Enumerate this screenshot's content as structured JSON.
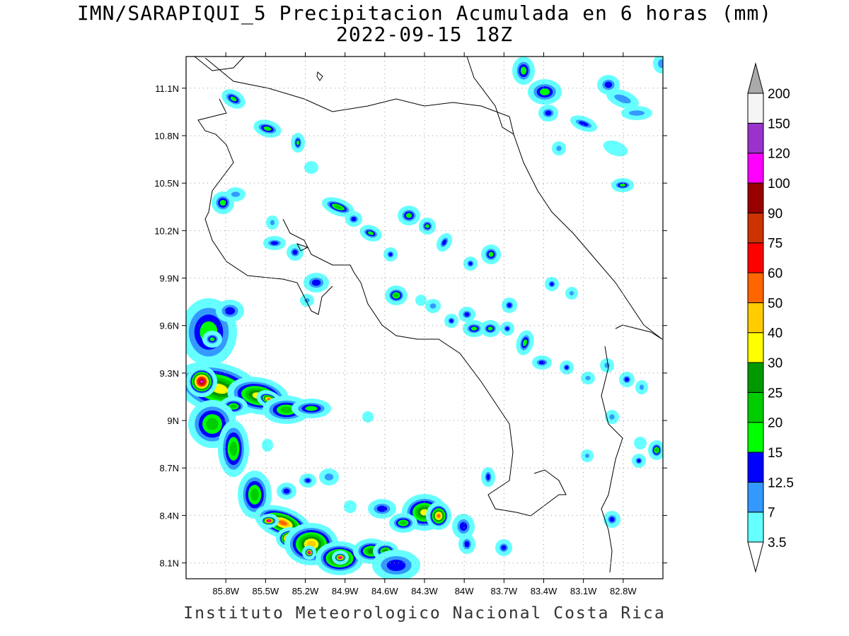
{
  "title": {
    "line1": "IMN/SARAPIQUI_5 Precipitacion Acumulada en 6 horas (mm)",
    "line2": "2022-09-15 18Z"
  },
  "footer": "Instituto Meteorologico Nacional Costa Rica",
  "map": {
    "lon_range": [
      -86.1,
      -82.5
    ],
    "lat_range": [
      8.0,
      11.3
    ],
    "lat_ticks": [
      "11.1N",
      "10.8N",
      "10.5N",
      "10.2N",
      "9.9N",
      "9.6N",
      "9.3N",
      "9N",
      "8.7N",
      "8.4N",
      "8.1N"
    ],
    "lat_values": [
      11.1,
      10.8,
      10.5,
      10.2,
      9.9,
      9.6,
      9.3,
      9.0,
      8.7,
      8.4,
      8.1
    ],
    "lon_ticks": [
      "85.8W",
      "85.5W",
      "85.2W",
      "84.9W",
      "84.6W",
      "84.3W",
      "84W",
      "83.7W",
      "83.4W",
      "83.1W",
      "82.8W"
    ],
    "lon_values": [
      -85.8,
      -85.5,
      -85.2,
      -84.9,
      -84.6,
      -84.3,
      -84.0,
      -83.7,
      -83.4,
      -83.1,
      -82.8
    ],
    "grid": true
  },
  "colorbar": {
    "levels": [
      "3.5",
      "7",
      "12.5",
      "15",
      "20",
      "25",
      "30",
      "40",
      "50",
      "60",
      "75",
      "90",
      "100",
      "120",
      "150",
      "200"
    ],
    "colors": [
      "#66ffff",
      "#3399ff",
      "#0000ff",
      "#00ff00",
      "#00cc00",
      "#009900",
      "#ffff00",
      "#ffcc00",
      "#ff6600",
      "#ff0000",
      "#cc3300",
      "#990000",
      "#ff00ff",
      "#9933cc",
      "#f5f5f5"
    ],
    "over_color": "#aaaaaa",
    "under_color": "#ffffff"
  },
  "palette_order": [
    "#66ffff",
    "#3399ff",
    "#0000ff",
    "#00ff00",
    "#00cc00",
    "#009900",
    "#ffff00",
    "#ffcc00",
    "#ff6600",
    "#ff0000",
    "#cc3300",
    "#990000",
    "#ff00ff",
    "#9933cc"
  ]
}
